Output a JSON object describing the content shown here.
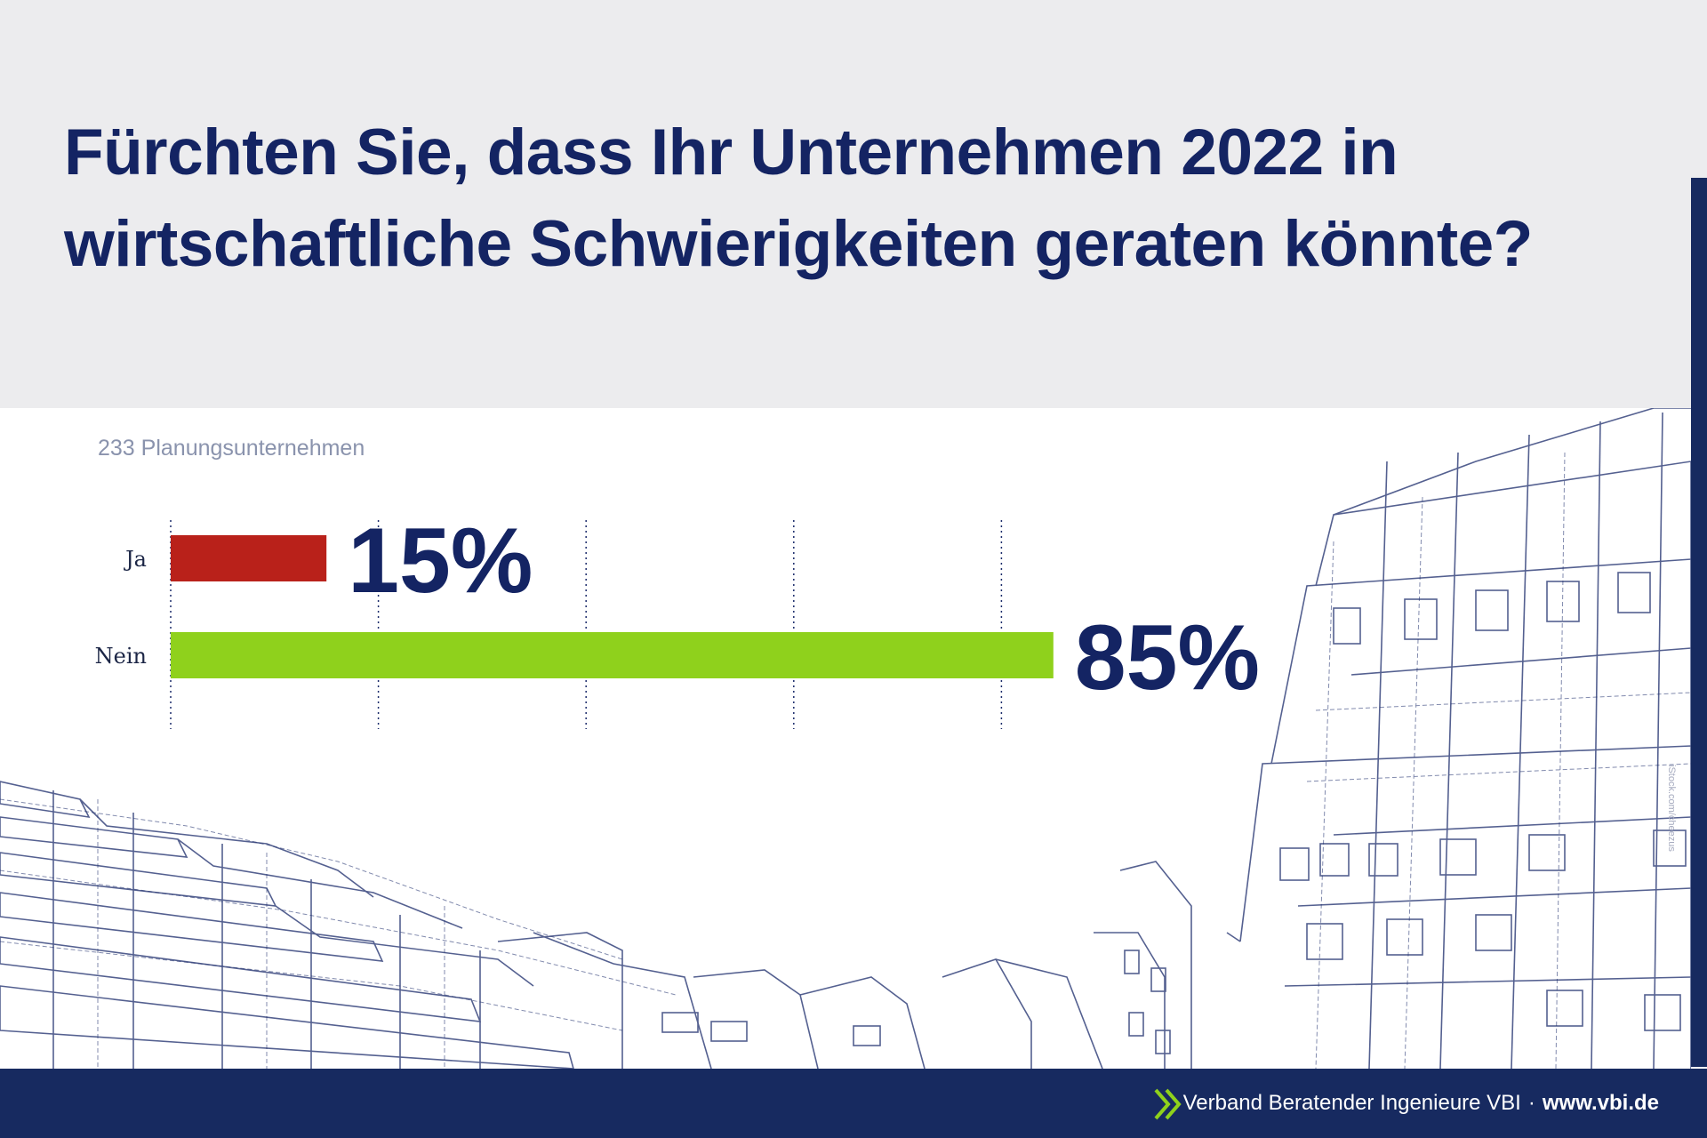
{
  "title": "Fürchten Sie, dass Ihr Unternehmen 2022 in wirtschaftliche Schwierigkeiten geraten könnte?",
  "subtitle": "233 Planungsunternehmen",
  "chart_data": {
    "type": "bar",
    "orientation": "horizontal",
    "categories": [
      "Ja",
      "Nein"
    ],
    "values": [
      15,
      85
    ],
    "value_labels": [
      "15%",
      "85%"
    ],
    "bar_colors": [
      "#b9211a",
      "#8fd11c"
    ],
    "xlim": [
      0,
      100
    ],
    "xlabel": "",
    "ylabel": "",
    "grid": "vertical dotted"
  },
  "footer": {
    "organization": "Verband Beratender Ingenieure VBI",
    "separator": "·",
    "url": "www.vbi.de"
  },
  "credit": "iStock.com/cheezus",
  "colors": {
    "title": "#142463",
    "header_band": "#ececee",
    "footer": "#172a60",
    "logo": "#8fd11c",
    "sketch": "#1c2c6b"
  }
}
